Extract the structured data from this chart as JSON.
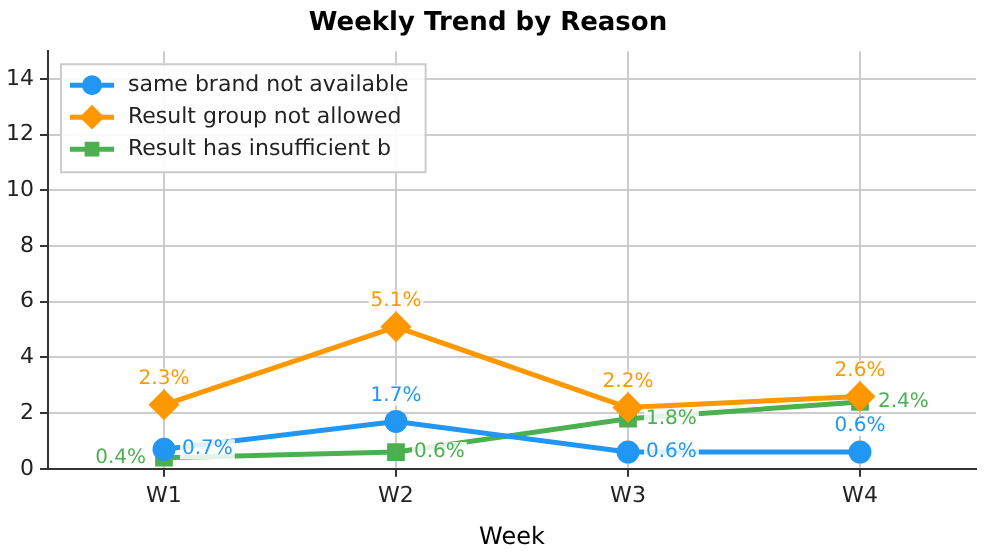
{
  "chart_data": {
    "type": "line",
    "title": "Weekly Trend by Reason",
    "xlabel": "Week",
    "categories": [
      "W1",
      "W2",
      "W3",
      "W4"
    ],
    "series": [
      {
        "name": "same brand not available",
        "color": "#2196f3",
        "marker": "circle",
        "values": [
          0.7,
          1.7,
          0.6,
          0.6
        ],
        "value_labels": [
          "0.7%",
          "1.7%",
          "0.6%",
          "0.6%"
        ]
      },
      {
        "name": "Result group not allowed",
        "color": "#ff9800",
        "marker": "diamond",
        "values": [
          2.3,
          5.1,
          2.2,
          2.6
        ],
        "value_labels": [
          "2.3%",
          "5.1%",
          "2.2%",
          "2.6%"
        ]
      },
      {
        "name": "Result has insufficient b",
        "color": "#4caf50",
        "marker": "square",
        "values": [
          0.4,
          0.6,
          1.8,
          2.4
        ],
        "value_labels": [
          "0.4%",
          "0.6%",
          "1.8%",
          "2.4%"
        ]
      }
    ],
    "ylim": [
      0,
      15
    ],
    "yticks": [
      0,
      2,
      4,
      6,
      8,
      10,
      12,
      14
    ],
    "grid": true,
    "legend": "top left"
  }
}
